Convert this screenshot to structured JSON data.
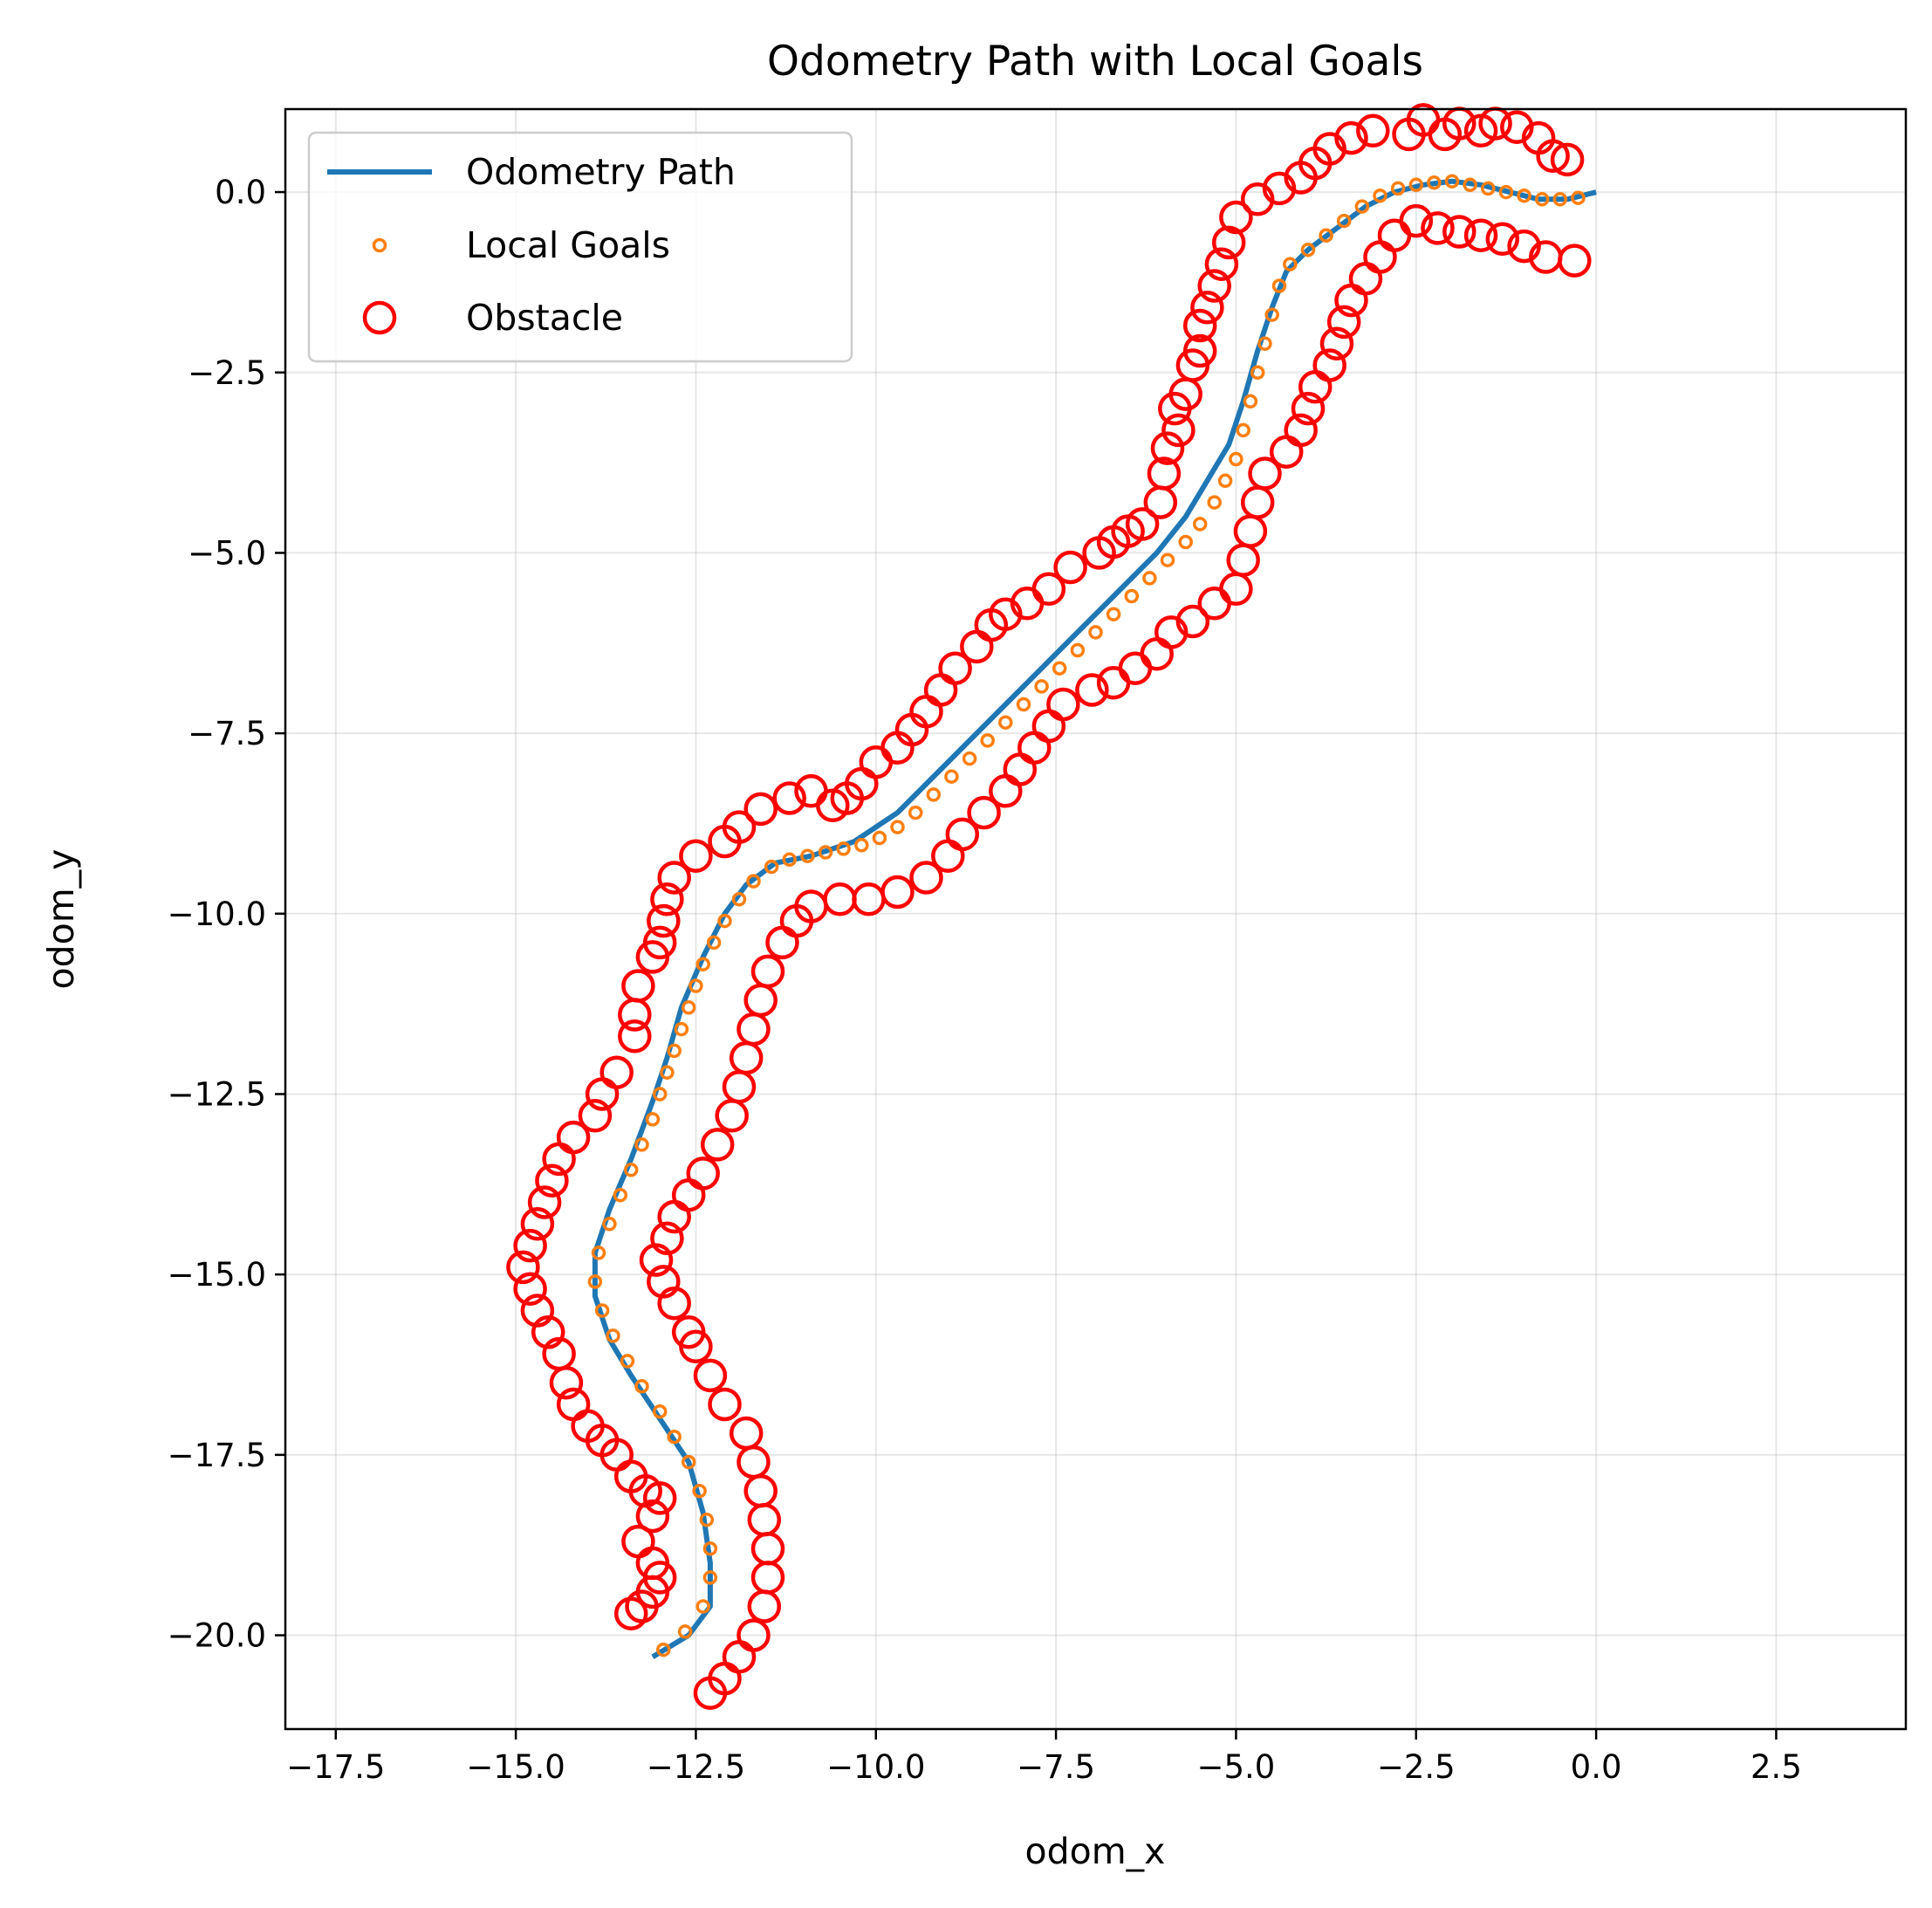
{
  "chart_data": {
    "type": "scatter",
    "title": "Odometry Path with Local Goals",
    "xlabel": "odom_x",
    "ylabel": "odom_y",
    "xlim": [
      -18.2,
      4.3
    ],
    "ylim": [
      -21.3,
      1.15
    ],
    "xticks": [
      -17.5,
      -15.0,
      -12.5,
      -10.0,
      -7.5,
      -5.0,
      -2.5,
      0.0,
      2.5
    ],
    "yticks": [
      0.0,
      -2.5,
      -5.0,
      -7.5,
      -10.0,
      -12.5,
      -15.0,
      -17.5,
      -20.0
    ],
    "xtick_labels": [
      "−17.5",
      "−15.0",
      "−12.5",
      "−10.0",
      "−7.5",
      "−5.0",
      "−2.5",
      "0.0",
      "2.5"
    ],
    "ytick_labels": [
      "0.0",
      "−2.5",
      "−5.0",
      "−7.5",
      "−10.0",
      "−12.5",
      "−15.0",
      "−17.5",
      "−20.0"
    ],
    "grid": true,
    "legend_position": "top-left",
    "colors": {
      "path": "#1f77b4",
      "goals": "#ff7f0e",
      "obstacle": "#ff0000"
    },
    "legend": [
      {
        "label": "Odometry Path",
        "marker": "line"
      },
      {
        "label": "Local Goals",
        "marker": "small-circle"
      },
      {
        "label": "Obstacle",
        "marker": "large-circle"
      }
    ],
    "series": [
      {
        "name": "Odometry Path",
        "type": "line",
        "points": [
          [
            0.0,
            0.0
          ],
          [
            -0.4,
            -0.1
          ],
          [
            -0.8,
            -0.1
          ],
          [
            -1.2,
            0.0
          ],
          [
            -1.6,
            0.1
          ],
          [
            -2.0,
            0.15
          ],
          [
            -2.4,
            0.1
          ],
          [
            -2.8,
            0.0
          ],
          [
            -3.2,
            -0.2
          ],
          [
            -3.6,
            -0.5
          ],
          [
            -4.0,
            -0.8
          ],
          [
            -4.3,
            -1.1
          ],
          [
            -4.5,
            -1.6
          ],
          [
            -4.7,
            -2.2
          ],
          [
            -4.9,
            -2.9
          ],
          [
            -5.1,
            -3.5
          ],
          [
            -5.4,
            -4.0
          ],
          [
            -5.7,
            -4.5
          ],
          [
            -6.1,
            -5.0
          ],
          [
            -6.6,
            -5.5
          ],
          [
            -7.1,
            -6.0
          ],
          [
            -7.6,
            -6.5
          ],
          [
            -8.1,
            -7.0
          ],
          [
            -8.6,
            -7.5
          ],
          [
            -9.1,
            -8.0
          ],
          [
            -9.7,
            -8.6
          ],
          [
            -10.3,
            -9.0
          ],
          [
            -10.9,
            -9.2
          ],
          [
            -11.4,
            -9.3
          ],
          [
            -11.8,
            -9.6
          ],
          [
            -12.1,
            -10.0
          ],
          [
            -12.4,
            -10.6
          ],
          [
            -12.7,
            -11.3
          ],
          [
            -12.9,
            -12.0
          ],
          [
            -13.1,
            -12.6
          ],
          [
            -13.4,
            -13.4
          ],
          [
            -13.7,
            -14.1
          ],
          [
            -13.9,
            -14.7
          ],
          [
            -13.9,
            -15.3
          ],
          [
            -13.7,
            -15.9
          ],
          [
            -13.4,
            -16.4
          ],
          [
            -13.0,
            -17.0
          ],
          [
            -12.6,
            -17.6
          ],
          [
            -12.4,
            -18.3
          ],
          [
            -12.3,
            -19.0
          ],
          [
            -12.3,
            -19.6
          ],
          [
            -12.6,
            -20.0
          ],
          [
            -13.1,
            -20.3
          ]
        ]
      },
      {
        "name": "Local Goals",
        "type": "scatter",
        "points": [
          [
            -0.25,
            -0.08
          ],
          [
            -0.5,
            -0.1
          ],
          [
            -0.75,
            -0.1
          ],
          [
            -1.0,
            -0.05
          ],
          [
            -1.25,
            0.0
          ],
          [
            -1.5,
            0.05
          ],
          [
            -1.75,
            0.1
          ],
          [
            -2.0,
            0.15
          ],
          [
            -2.25,
            0.13
          ],
          [
            -2.5,
            0.1
          ],
          [
            -2.75,
            0.05
          ],
          [
            -3.0,
            -0.05
          ],
          [
            -3.25,
            -0.2
          ],
          [
            -3.5,
            -0.4
          ],
          [
            -3.75,
            -0.6
          ],
          [
            -4.0,
            -0.8
          ],
          [
            -4.25,
            -1.0
          ],
          [
            -4.4,
            -1.3
          ],
          [
            -4.5,
            -1.7
          ],
          [
            -4.6,
            -2.1
          ],
          [
            -4.7,
            -2.5
          ],
          [
            -4.8,
            -2.9
          ],
          [
            -4.9,
            -3.3
          ],
          [
            -5.0,
            -3.7
          ],
          [
            -5.15,
            -4.0
          ],
          [
            -5.3,
            -4.3
          ],
          [
            -5.5,
            -4.6
          ],
          [
            -5.7,
            -4.85
          ],
          [
            -5.95,
            -5.1
          ],
          [
            -6.2,
            -5.35
          ],
          [
            -6.45,
            -5.6
          ],
          [
            -6.7,
            -5.85
          ],
          [
            -6.95,
            -6.1
          ],
          [
            -7.2,
            -6.35
          ],
          [
            -7.45,
            -6.6
          ],
          [
            -7.7,
            -6.85
          ],
          [
            -7.95,
            -7.1
          ],
          [
            -8.2,
            -7.35
          ],
          [
            -8.45,
            -7.6
          ],
          [
            -8.7,
            -7.85
          ],
          [
            -8.95,
            -8.1
          ],
          [
            -9.2,
            -8.35
          ],
          [
            -9.45,
            -8.6
          ],
          [
            -9.7,
            -8.8
          ],
          [
            -9.95,
            -8.95
          ],
          [
            -10.2,
            -9.05
          ],
          [
            -10.45,
            -9.1
          ],
          [
            -10.7,
            -9.15
          ],
          [
            -10.95,
            -9.2
          ],
          [
            -11.2,
            -9.25
          ],
          [
            -11.45,
            -9.35
          ],
          [
            -11.7,
            -9.55
          ],
          [
            -11.9,
            -9.8
          ],
          [
            -12.1,
            -10.1
          ],
          [
            -12.25,
            -10.4
          ],
          [
            -12.4,
            -10.7
          ],
          [
            -12.5,
            -11.0
          ],
          [
            -12.6,
            -11.3
          ],
          [
            -12.7,
            -11.6
          ],
          [
            -12.8,
            -11.9
          ],
          [
            -12.9,
            -12.2
          ],
          [
            -13.0,
            -12.5
          ],
          [
            -13.1,
            -12.85
          ],
          [
            -13.25,
            -13.2
          ],
          [
            -13.4,
            -13.55
          ],
          [
            -13.55,
            -13.9
          ],
          [
            -13.7,
            -14.3
          ],
          [
            -13.85,
            -14.7
          ],
          [
            -13.9,
            -15.1
          ],
          [
            -13.8,
            -15.5
          ],
          [
            -13.65,
            -15.85
          ],
          [
            -13.45,
            -16.2
          ],
          [
            -13.25,
            -16.55
          ],
          [
            -13.0,
            -16.9
          ],
          [
            -12.8,
            -17.25
          ],
          [
            -12.6,
            -17.6
          ],
          [
            -12.45,
            -18.0
          ],
          [
            -12.35,
            -18.4
          ],
          [
            -12.3,
            -18.8
          ],
          [
            -12.3,
            -19.2
          ],
          [
            -12.4,
            -19.6
          ],
          [
            -12.65,
            -19.95
          ],
          [
            -12.95,
            -20.2
          ]
        ]
      },
      {
        "name": "Obstacle",
        "type": "scatter",
        "points": [
          [
            -0.4,
            0.45
          ],
          [
            -0.6,
            0.5
          ],
          [
            -0.8,
            0.75
          ],
          [
            -1.1,
            0.9
          ],
          [
            -1.4,
            0.95
          ],
          [
            -1.6,
            0.85
          ],
          [
            -1.9,
            0.95
          ],
          [
            -2.1,
            0.8
          ],
          [
            -2.4,
            1.0
          ],
          [
            -2.6,
            0.8
          ],
          [
            -3.1,
            0.85
          ],
          [
            -3.4,
            0.75
          ],
          [
            -3.7,
            0.6
          ],
          [
            -3.9,
            0.4
          ],
          [
            -4.1,
            0.2
          ],
          [
            -4.4,
            0.05
          ],
          [
            -4.7,
            -0.1
          ],
          [
            -5.0,
            -0.35
          ],
          [
            -5.1,
            -0.7
          ],
          [
            -5.2,
            -1.0
          ],
          [
            -5.3,
            -1.3
          ],
          [
            -5.4,
            -1.6
          ],
          [
            -5.5,
            -1.85
          ],
          [
            -5.5,
            -2.2
          ],
          [
            -5.6,
            -2.4
          ],
          [
            -5.7,
            -2.8
          ],
          [
            -5.85,
            -3.0
          ],
          [
            -5.8,
            -3.3
          ],
          [
            -5.95,
            -3.55
          ],
          [
            -6.0,
            -3.9
          ],
          [
            -6.05,
            -4.3
          ],
          [
            -6.3,
            -4.6
          ],
          [
            -6.5,
            -4.7
          ],
          [
            -6.7,
            -4.85
          ],
          [
            -6.9,
            -5.0
          ],
          [
            -7.3,
            -5.2
          ],
          [
            -7.6,
            -5.5
          ],
          [
            -7.9,
            -5.7
          ],
          [
            -8.2,
            -5.85
          ],
          [
            -8.4,
            -6.0
          ],
          [
            -8.6,
            -6.3
          ],
          [
            -8.9,
            -6.6
          ],
          [
            -9.1,
            -6.9
          ],
          [
            -9.3,
            -7.2
          ],
          [
            -9.5,
            -7.45
          ],
          [
            -9.7,
            -7.7
          ],
          [
            -10.0,
            -7.9
          ],
          [
            -10.2,
            -8.2
          ],
          [
            -10.4,
            -8.4
          ],
          [
            -10.6,
            -8.5
          ],
          [
            -10.9,
            -8.3
          ],
          [
            -11.2,
            -8.4
          ],
          [
            -11.6,
            -8.55
          ],
          [
            -11.9,
            -8.8
          ],
          [
            -12.1,
            -9.0
          ],
          [
            -12.5,
            -9.2
          ],
          [
            -12.8,
            -9.5
          ],
          [
            -12.9,
            -9.8
          ],
          [
            -12.95,
            -10.1
          ],
          [
            -13.0,
            -10.4
          ],
          [
            -13.1,
            -10.6
          ],
          [
            -13.3,
            -11.0
          ],
          [
            -13.35,
            -11.4
          ],
          [
            -13.35,
            -11.7
          ],
          [
            -13.6,
            -12.2
          ],
          [
            -13.8,
            -12.5
          ],
          [
            -13.9,
            -12.8
          ],
          [
            -14.2,
            -13.1
          ],
          [
            -14.4,
            -13.4
          ],
          [
            -14.5,
            -13.7
          ],
          [
            -14.6,
            -14.0
          ],
          [
            -14.7,
            -14.3
          ],
          [
            -14.8,
            -14.6
          ],
          [
            -14.9,
            -14.9
          ],
          [
            -14.8,
            -15.2
          ],
          [
            -14.7,
            -15.5
          ],
          [
            -14.55,
            -15.8
          ],
          [
            -14.4,
            -16.1
          ],
          [
            -14.3,
            -16.5
          ],
          [
            -14.2,
            -16.8
          ],
          [
            -14.0,
            -17.1
          ],
          [
            -13.8,
            -17.3
          ],
          [
            -13.6,
            -17.5
          ],
          [
            -13.4,
            -17.8
          ],
          [
            -13.2,
            -18.0
          ],
          [
            -13.0,
            -18.1
          ],
          [
            -13.1,
            -18.35
          ],
          [
            -13.3,
            -18.7
          ],
          [
            -13.1,
            -19.0
          ],
          [
            -13.0,
            -19.2
          ],
          [
            -13.1,
            -19.4
          ],
          [
            -13.25,
            -19.6
          ],
          [
            -13.4,
            -19.7
          ],
          [
            -12.3,
            -16.4
          ],
          [
            -12.1,
            -16.8
          ],
          [
            -11.8,
            -17.2
          ],
          [
            -11.7,
            -17.6
          ],
          [
            -11.6,
            -18.0
          ],
          [
            -11.55,
            -18.4
          ],
          [
            -11.5,
            -18.8
          ],
          [
            -11.5,
            -19.2
          ],
          [
            -11.55,
            -19.6
          ],
          [
            -11.7,
            -20.0
          ],
          [
            -11.9,
            -20.3
          ],
          [
            -12.1,
            -20.6
          ],
          [
            -12.3,
            -20.8
          ],
          [
            -12.5,
            -16.0
          ],
          [
            -12.6,
            -15.8
          ],
          [
            -12.8,
            -15.4
          ],
          [
            -12.95,
            -15.1
          ],
          [
            -13.05,
            -14.8
          ],
          [
            -12.9,
            -14.5
          ],
          [
            -12.8,
            -14.2
          ],
          [
            -12.6,
            -13.9
          ],
          [
            -12.4,
            -13.6
          ],
          [
            -12.2,
            -13.2
          ],
          [
            -12.0,
            -12.8
          ],
          [
            -11.9,
            -12.4
          ],
          [
            -11.8,
            -12.0
          ],
          [
            -11.7,
            -11.6
          ],
          [
            -11.6,
            -11.2
          ],
          [
            -11.5,
            -10.8
          ],
          [
            -11.3,
            -10.4
          ],
          [
            -11.1,
            -10.1
          ],
          [
            -10.9,
            -9.9
          ],
          [
            -10.5,
            -9.8
          ],
          [
            -10.1,
            -9.8
          ],
          [
            -9.7,
            -9.7
          ],
          [
            -9.3,
            -9.5
          ],
          [
            -9.0,
            -9.2
          ],
          [
            -8.8,
            -8.9
          ],
          [
            -8.5,
            -8.6
          ],
          [
            -8.2,
            -8.3
          ],
          [
            -8.0,
            -8.0
          ],
          [
            -7.8,
            -7.7
          ],
          [
            -7.6,
            -7.4
          ],
          [
            -7.4,
            -7.1
          ],
          [
            -7.0,
            -6.9
          ],
          [
            -6.7,
            -6.8
          ],
          [
            -6.4,
            -6.6
          ],
          [
            -6.1,
            -6.4
          ],
          [
            -5.9,
            -6.1
          ],
          [
            -5.6,
            -5.95
          ],
          [
            -5.3,
            -5.7
          ],
          [
            -5.0,
            -5.5
          ],
          [
            -4.9,
            -5.1
          ],
          [
            -4.8,
            -4.7
          ],
          [
            -4.7,
            -4.3
          ],
          [
            -4.6,
            -3.9
          ],
          [
            -4.3,
            -3.6
          ],
          [
            -4.1,
            -3.3
          ],
          [
            -4.0,
            -3.0
          ],
          [
            -3.9,
            -2.7
          ],
          [
            -3.7,
            -2.4
          ],
          [
            -3.6,
            -2.1
          ],
          [
            -3.5,
            -1.8
          ],
          [
            -3.4,
            -1.5
          ],
          [
            -3.2,
            -1.2
          ],
          [
            -3.0,
            -0.9
          ],
          [
            -2.8,
            -0.6
          ],
          [
            -2.5,
            -0.4
          ],
          [
            -2.2,
            -0.5
          ],
          [
            -1.9,
            -0.55
          ],
          [
            -1.6,
            -0.6
          ],
          [
            -1.3,
            -0.65
          ],
          [
            -1.0,
            -0.75
          ],
          [
            -0.7,
            -0.9
          ],
          [
            -0.3,
            -0.95
          ]
        ]
      }
    ]
  }
}
